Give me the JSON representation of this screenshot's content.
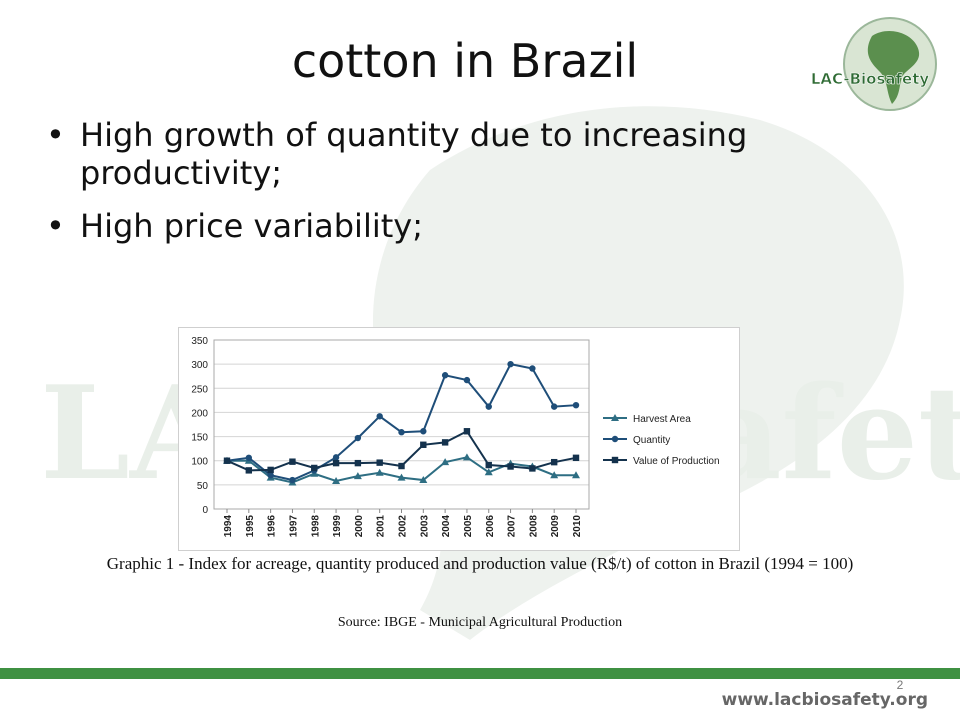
{
  "slide": {
    "title": "cotton in Brazil",
    "bullets": [
      "High growth of quantity due to increasing productivity;",
      "High price variability;"
    ],
    "bullet_glyph": "•",
    "caption": "Graphic 1 - Index for acreage, quantity produced and production value (R$/t) of cotton in Brazil (1994 = 100)",
    "source": "Source: IBGE - Municipal Agricultural Production",
    "page_number": "2",
    "footer_url": "www.lacbiosafety.org"
  },
  "logo": {
    "text": "LAC-Biosafety",
    "icon": "globe-americas-icon"
  },
  "watermark": {
    "text": "LAC-Biosafety"
  },
  "colors": {
    "accent_green": "#3f9142",
    "series_harvest": "#2e6e83",
    "series_quantity": "#1f4e79",
    "series_value": "#14324d"
  },
  "chart_data": {
    "type": "line",
    "x": [
      "1994",
      "1995",
      "1996",
      "1997",
      "1998",
      "1999",
      "2000",
      "2001",
      "2002",
      "2003",
      "2004",
      "2005",
      "2006",
      "2007",
      "2008",
      "2009",
      "2010"
    ],
    "ylim": [
      0,
      350
    ],
    "yticks": [
      0,
      50,
      100,
      150,
      200,
      250,
      300,
      350
    ],
    "grid": true,
    "legend_position": "right",
    "series": [
      {
        "name": "Harvest Area",
        "marker": "triangle",
        "color": "#2e6e83",
        "values": [
          100,
          100,
          65,
          55,
          73,
          58,
          68,
          75,
          65,
          60,
          97,
          107,
          76,
          94,
          88,
          70,
          70
        ]
      },
      {
        "name": "Quantity",
        "marker": "circle",
        "color": "#1f4e79",
        "values": [
          100,
          106,
          70,
          60,
          80,
          107,
          147,
          192,
          159,
          161,
          277,
          267,
          212,
          300,
          291,
          212,
          215
        ]
      },
      {
        "name": "Value of Production",
        "marker": "square",
        "color": "#14324d",
        "values": [
          100,
          80,
          81,
          98,
          85,
          95,
          95,
          96,
          89,
          133,
          138,
          161,
          91,
          88,
          84,
          97,
          106
        ]
      }
    ]
  }
}
